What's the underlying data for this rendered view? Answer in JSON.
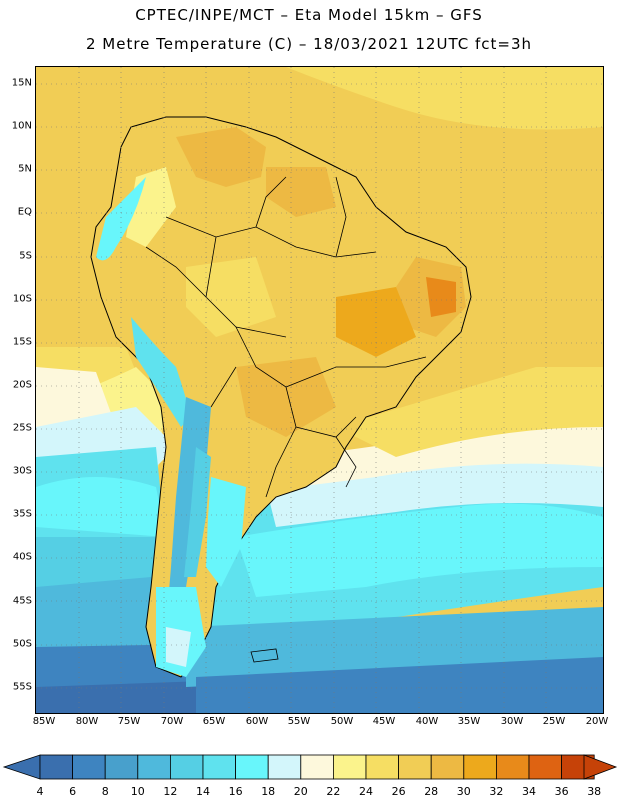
{
  "title_line1": "CPTEC/INPE/MCT –  Eta Model 15km – GFS",
  "title_line2": "2 Metre Temperature (C) – 18/03/2021 12UTC fct=3h",
  "lat_labels": [
    "15N",
    "10N",
    "5N",
    "EQ",
    "5S",
    "10S",
    "15S",
    "20S",
    "25S",
    "30S",
    "35S",
    "40S",
    "45S",
    "50S",
    "55S"
  ],
  "lon_labels": [
    "85W",
    "80W",
    "75W",
    "70W",
    "65W",
    "60W",
    "55W",
    "50W",
    "45W",
    "40W",
    "35W",
    "30W",
    "25W",
    "20W"
  ],
  "colorbar": {
    "ticks": [
      "4",
      "6",
      "8",
      "10",
      "12",
      "14",
      "16",
      "18",
      "20",
      "22",
      "24",
      "26",
      "28",
      "30",
      "32",
      "34",
      "36",
      "38"
    ],
    "colors": [
      "#3a6fae",
      "#3e84c0",
      "#48a0cc",
      "#4fb9dc",
      "#55cfe4",
      "#5fe2ee",
      "#68f6fb",
      "#d3f6fb",
      "#fdf8dc",
      "#fbf38c",
      "#f6de63",
      "#f1cd55",
      "#edb943",
      "#eda91c",
      "#e88a1a",
      "#de6312",
      "#c64208"
    ],
    "under_color": "#3a6fae",
    "over_color": "#c64208"
  }
}
